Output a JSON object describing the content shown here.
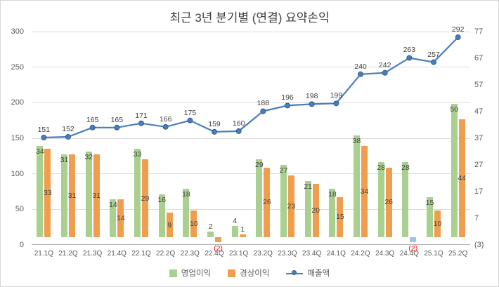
{
  "title": "최근 3년 분기별 (연결) 요약손익",
  "legend": {
    "items": [
      {
        "label": "영업이익",
        "swatch": "bar",
        "color": "#a9d08e"
      },
      {
        "label": "경상이익",
        "swatch": "bar",
        "color": "#ef9e50"
      },
      {
        "label": "매출액",
        "swatch": "line",
        "color": "#4a7ebb"
      }
    ]
  },
  "chart_data": {
    "type": "combo-bar-line",
    "title": "최근 3년 분기별 (연결) 요약손익",
    "categories": [
      "21.1Q",
      "21.2Q",
      "21.3Q",
      "21.4Q",
      "22.1Q",
      "22.2Q",
      "22.3Q",
      "22.4Q",
      "23.1Q",
      "23.2Q",
      "23.3Q",
      "23.4Q",
      "24.1Q",
      "24.2Q",
      "24.3Q",
      "24.4Q",
      "25.1Q",
      "25.2Q"
    ],
    "series": [
      {
        "name": "영업이익",
        "type": "bar",
        "axis": "right",
        "color": "#a9d08e",
        "values": [
          34,
          31,
          32,
          14,
          33,
          16,
          18,
          2,
          4,
          29,
          27,
          21,
          18,
          38,
          28,
          28,
          15,
          50
        ]
      },
      {
        "name": "경상이익",
        "type": "bar",
        "axis": "right",
        "color": "#ef9e50",
        "values": [
          33,
          31,
          31,
          14,
          29,
          9,
          10,
          -2,
          1,
          26,
          23,
          20,
          15,
          34,
          26,
          -2,
          10,
          44
        ],
        "point_colors": {
          "15": "#9dc3e6"
        }
      },
      {
        "name": "매출액",
        "type": "line",
        "axis": "left",
        "color": "#4a7ebb",
        "values": [
          151,
          152,
          165,
          165,
          171,
          166,
          175,
          159,
          160,
          188,
          196,
          198,
          199,
          240,
          242,
          263,
          257,
          292
        ]
      }
    ],
    "left_axis": {
      "min": 0,
      "max": 300,
      "ticks": [
        0,
        50,
        100,
        150,
        200,
        250,
        300
      ]
    },
    "right_axis": {
      "min": -3,
      "max": 77,
      "ticks": [
        -3,
        7,
        17,
        27,
        37,
        47,
        57,
        67,
        77
      ]
    },
    "negative_number_style": {
      "format": "parentheses",
      "color": "#ff0000"
    },
    "gridlines": "horizontal",
    "legend_position": "bottom"
  }
}
